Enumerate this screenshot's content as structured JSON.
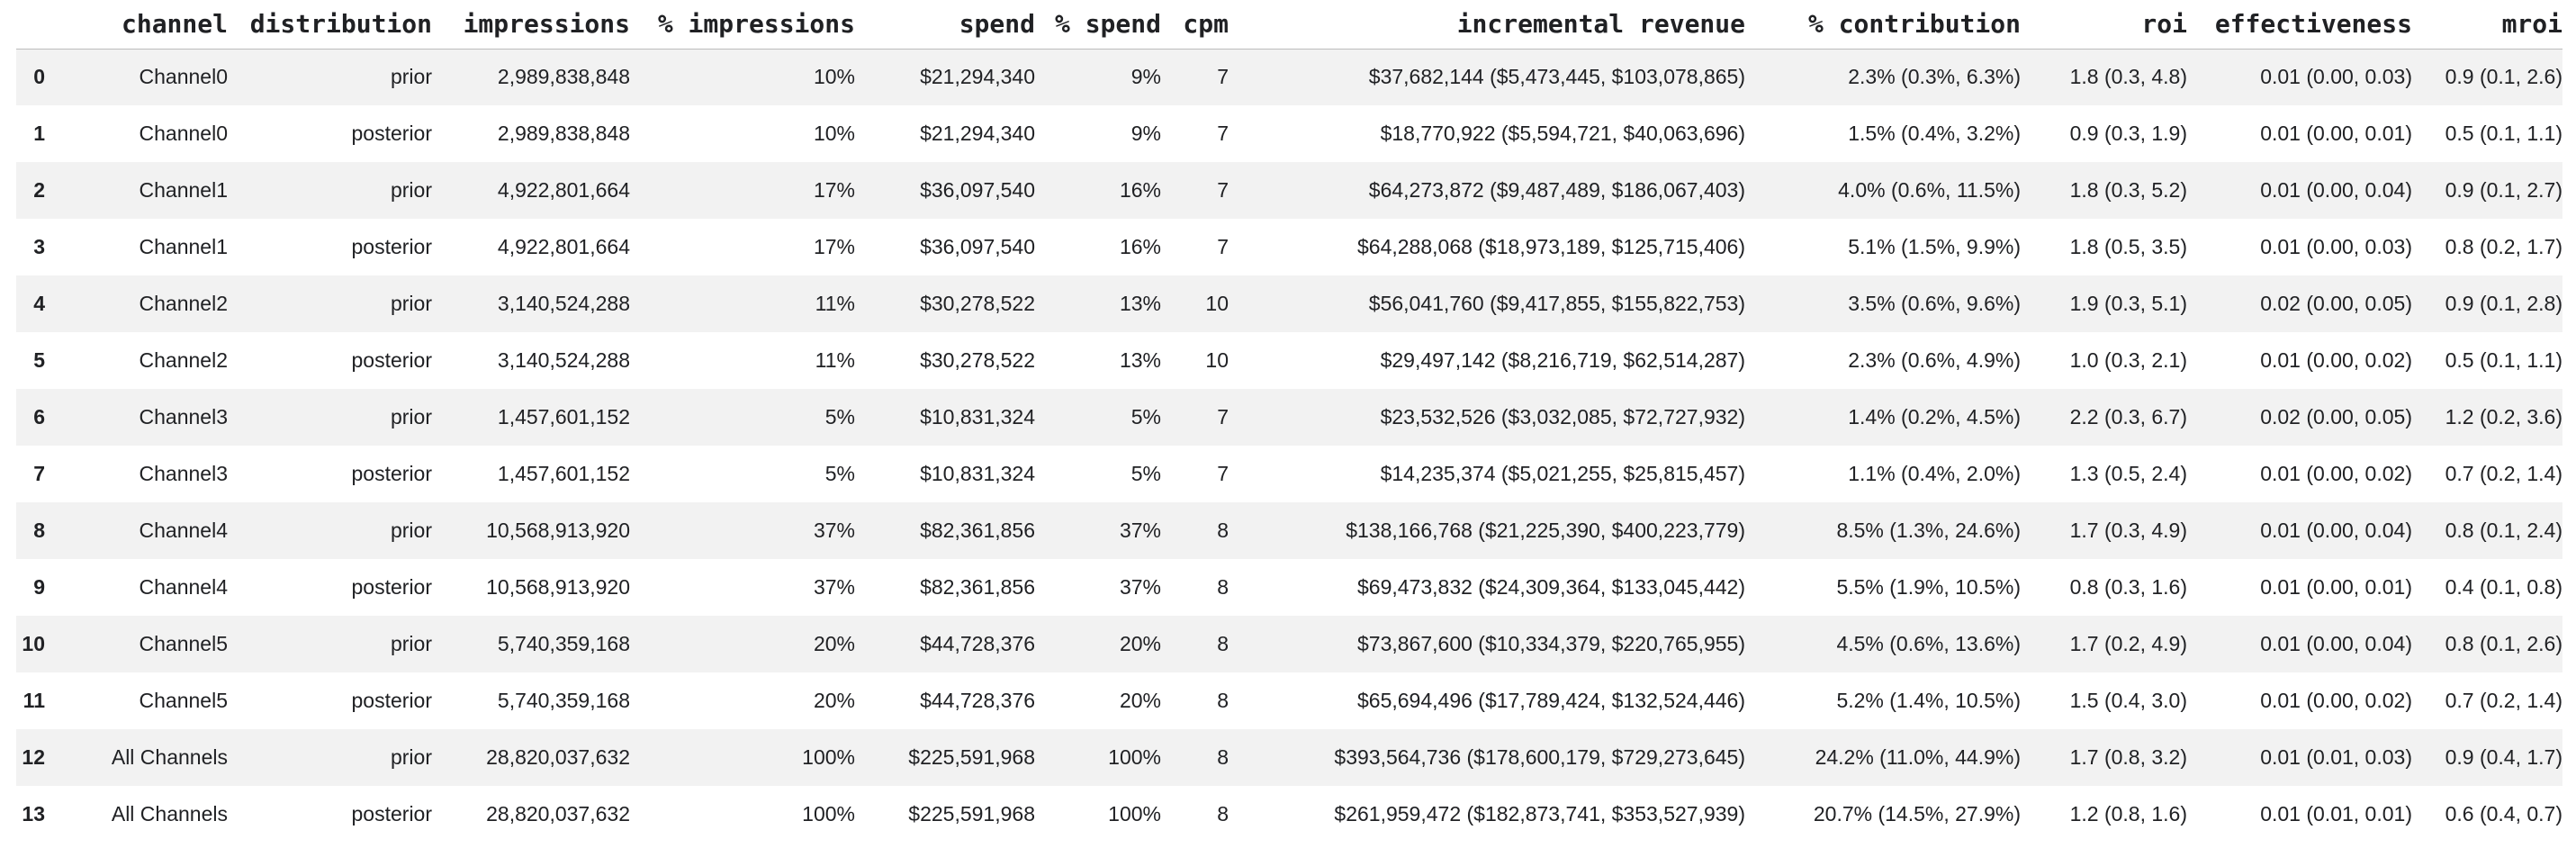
{
  "colors": {
    "background": "#ffffff",
    "stripe_row": "#f2f2f2",
    "header_border": "#bdbdbd",
    "text": "#202124"
  },
  "chart_data": {
    "type": "table",
    "index_label": "",
    "index": [
      "0",
      "1",
      "2",
      "3",
      "4",
      "5",
      "6",
      "7",
      "8",
      "9",
      "10",
      "11",
      "12",
      "13"
    ],
    "columns": [
      "channel",
      "distribution",
      "impressions",
      "% impressions",
      "spend",
      "% spend",
      "cpm",
      "incremental revenue",
      "% contribution",
      "roi",
      "effectiveness",
      "mroi"
    ],
    "rows": [
      [
        "Channel0",
        "prior",
        "2,989,838,848",
        "10%",
        "$21,294,340",
        "9%",
        "7",
        "$37,682,144 ($5,473,445, $103,078,865)",
        "2.3% (0.3%, 6.3%)",
        "1.8 (0.3, 4.8)",
        "0.01 (0.00, 0.03)",
        "0.9 (0.1, 2.6)"
      ],
      [
        "Channel0",
        "posterior",
        "2,989,838,848",
        "10%",
        "$21,294,340",
        "9%",
        "7",
        "$18,770,922 ($5,594,721, $40,063,696)",
        "1.5% (0.4%, 3.2%)",
        "0.9 (0.3, 1.9)",
        "0.01 (0.00, 0.01)",
        "0.5 (0.1, 1.1)"
      ],
      [
        "Channel1",
        "prior",
        "4,922,801,664",
        "17%",
        "$36,097,540",
        "16%",
        "7",
        "$64,273,872 ($9,487,489, $186,067,403)",
        "4.0% (0.6%, 11.5%)",
        "1.8 (0.3, 5.2)",
        "0.01 (0.00, 0.04)",
        "0.9 (0.1, 2.7)"
      ],
      [
        "Channel1",
        "posterior",
        "4,922,801,664",
        "17%",
        "$36,097,540",
        "16%",
        "7",
        "$64,288,068 ($18,973,189, $125,715,406)",
        "5.1% (1.5%, 9.9%)",
        "1.8 (0.5, 3.5)",
        "0.01 (0.00, 0.03)",
        "0.8 (0.2, 1.7)"
      ],
      [
        "Channel2",
        "prior",
        "3,140,524,288",
        "11%",
        "$30,278,522",
        "13%",
        "10",
        "$56,041,760 ($9,417,855, $155,822,753)",
        "3.5% (0.6%, 9.6%)",
        "1.9 (0.3, 5.1)",
        "0.02 (0.00, 0.05)",
        "0.9 (0.1, 2.8)"
      ],
      [
        "Channel2",
        "posterior",
        "3,140,524,288",
        "11%",
        "$30,278,522",
        "13%",
        "10",
        "$29,497,142 ($8,216,719, $62,514,287)",
        "2.3% (0.6%, 4.9%)",
        "1.0 (0.3, 2.1)",
        "0.01 (0.00, 0.02)",
        "0.5 (0.1, 1.1)"
      ],
      [
        "Channel3",
        "prior",
        "1,457,601,152",
        "5%",
        "$10,831,324",
        "5%",
        "7",
        "$23,532,526 ($3,032,085, $72,727,932)",
        "1.4% (0.2%, 4.5%)",
        "2.2 (0.3, 6.7)",
        "0.02 (0.00, 0.05)",
        "1.2 (0.2, 3.6)"
      ],
      [
        "Channel3",
        "posterior",
        "1,457,601,152",
        "5%",
        "$10,831,324",
        "5%",
        "7",
        "$14,235,374 ($5,021,255, $25,815,457)",
        "1.1% (0.4%, 2.0%)",
        "1.3 (0.5, 2.4)",
        "0.01 (0.00, 0.02)",
        "0.7 (0.2, 1.4)"
      ],
      [
        "Channel4",
        "prior",
        "10,568,913,920",
        "37%",
        "$82,361,856",
        "37%",
        "8",
        "$138,166,768 ($21,225,390, $400,223,779)",
        "8.5% (1.3%, 24.6%)",
        "1.7 (0.3, 4.9)",
        "0.01 (0.00, 0.04)",
        "0.8 (0.1, 2.4)"
      ],
      [
        "Channel4",
        "posterior",
        "10,568,913,920",
        "37%",
        "$82,361,856",
        "37%",
        "8",
        "$69,473,832 ($24,309,364, $133,045,442)",
        "5.5% (1.9%, 10.5%)",
        "0.8 (0.3, 1.6)",
        "0.01 (0.00, 0.01)",
        "0.4 (0.1, 0.8)"
      ],
      [
        "Channel5",
        "prior",
        "5,740,359,168",
        "20%",
        "$44,728,376",
        "20%",
        "8",
        "$73,867,600 ($10,334,379, $220,765,955)",
        "4.5% (0.6%, 13.6%)",
        "1.7 (0.2, 4.9)",
        "0.01 (0.00, 0.04)",
        "0.8 (0.1, 2.6)"
      ],
      [
        "Channel5",
        "posterior",
        "5,740,359,168",
        "20%",
        "$44,728,376",
        "20%",
        "8",
        "$65,694,496 ($17,789,424, $132,524,446)",
        "5.2% (1.4%, 10.5%)",
        "1.5 (0.4, 3.0)",
        "0.01 (0.00, 0.02)",
        "0.7 (0.2, 1.4)"
      ],
      [
        "All Channels",
        "prior",
        "28,820,037,632",
        "100%",
        "$225,591,968",
        "100%",
        "8",
        "$393,564,736 ($178,600,179, $729,273,645)",
        "24.2% (11.0%, 44.9%)",
        "1.7 (0.8, 3.2)",
        "0.01 (0.01, 0.03)",
        "0.9 (0.4, 1.7)"
      ],
      [
        "All Channels",
        "posterior",
        "28,820,037,632",
        "100%",
        "$225,591,968",
        "100%",
        "8",
        "$261,959,472 ($182,873,741, $353,527,939)",
        "20.7% (14.5%, 27.9%)",
        "1.2 (0.8, 1.6)",
        "0.01 (0.01, 0.01)",
        "0.6 (0.4, 0.7)"
      ]
    ]
  }
}
